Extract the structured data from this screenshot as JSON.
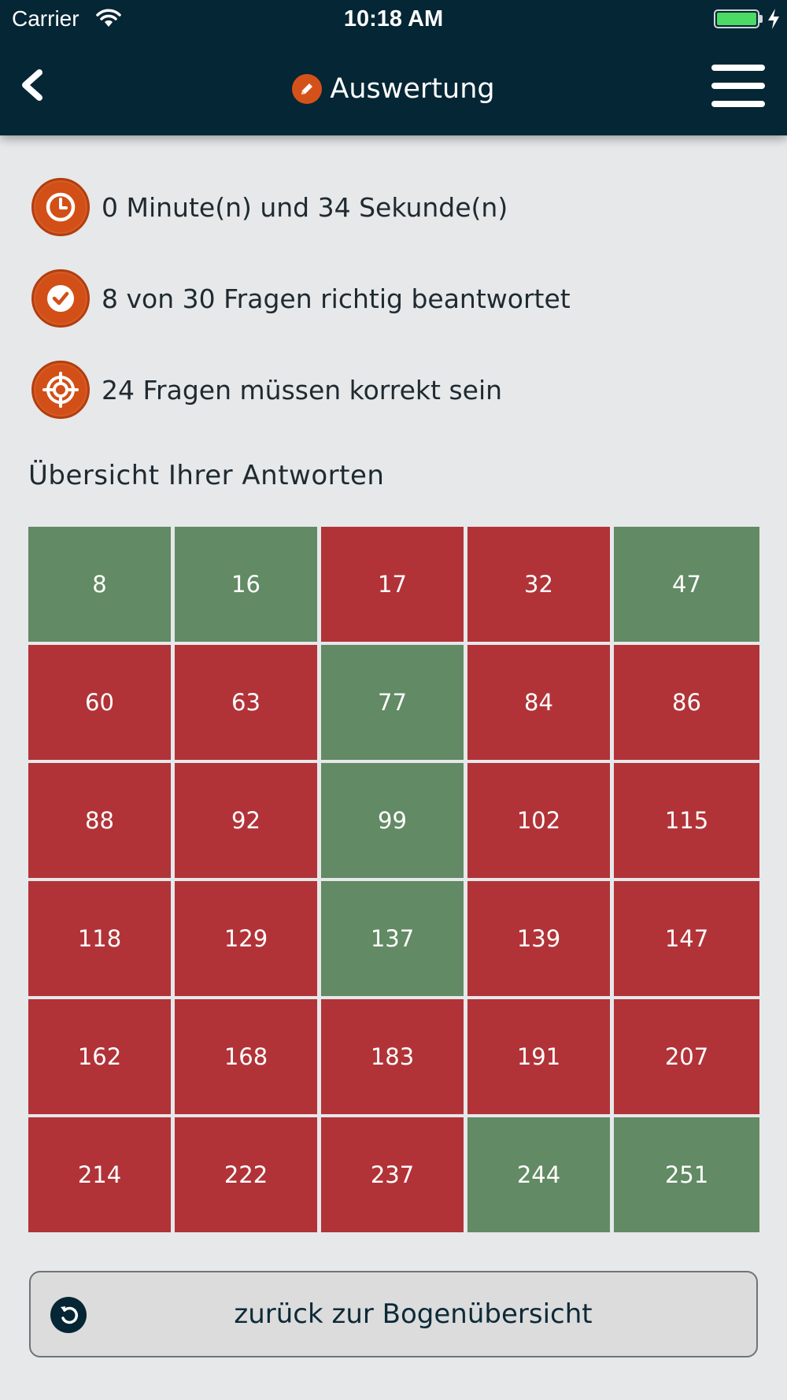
{
  "status_bar": {
    "carrier": "Carrier",
    "time": "10:18 AM",
    "battery_color": "#4cd964"
  },
  "header": {
    "title": "Auswertung",
    "title_icon": "pencil-icon",
    "back_icon": "chevron-left-icon",
    "menu_icon": "hamburger-menu-icon",
    "background": "#052634",
    "accent": "#d4521a"
  },
  "results": [
    {
      "icon": "clock-icon",
      "text": "0 Minute(n) und 34 Sekunde(n)"
    },
    {
      "icon": "checkmark-icon",
      "text": "8 von 30 Fragen richtig beantwortet"
    },
    {
      "icon": "target-icon",
      "text": "24 Fragen müssen korrekt sein"
    }
  ],
  "overview": {
    "title": "Übersicht Ihrer Antworten",
    "colors": {
      "correct": "#628a64",
      "wrong": "#b13338"
    },
    "answers": [
      {
        "number": "8",
        "correct": true
      },
      {
        "number": "16",
        "correct": true
      },
      {
        "number": "17",
        "correct": false
      },
      {
        "number": "32",
        "correct": false
      },
      {
        "number": "47",
        "correct": true
      },
      {
        "number": "60",
        "correct": false
      },
      {
        "number": "63",
        "correct": false
      },
      {
        "number": "77",
        "correct": true
      },
      {
        "number": "84",
        "correct": false
      },
      {
        "number": "86",
        "correct": false
      },
      {
        "number": "88",
        "correct": false
      },
      {
        "number": "92",
        "correct": false
      },
      {
        "number": "99",
        "correct": true
      },
      {
        "number": "102",
        "correct": false
      },
      {
        "number": "115",
        "correct": false
      },
      {
        "number": "118",
        "correct": false
      },
      {
        "number": "129",
        "correct": false
      },
      {
        "number": "137",
        "correct": true
      },
      {
        "number": "139",
        "correct": false
      },
      {
        "number": "147",
        "correct": false
      },
      {
        "number": "162",
        "correct": false
      },
      {
        "number": "168",
        "correct": false
      },
      {
        "number": "183",
        "correct": false
      },
      {
        "number": "191",
        "correct": false
      },
      {
        "number": "207",
        "correct": false
      },
      {
        "number": "214",
        "correct": false
      },
      {
        "number": "222",
        "correct": false
      },
      {
        "number": "237",
        "correct": false
      },
      {
        "number": "244",
        "correct": true
      },
      {
        "number": "251",
        "correct": true
      }
    ]
  },
  "bottom_button": {
    "label": "zurück zur Bogenübersicht",
    "icon": "undo-icon"
  }
}
